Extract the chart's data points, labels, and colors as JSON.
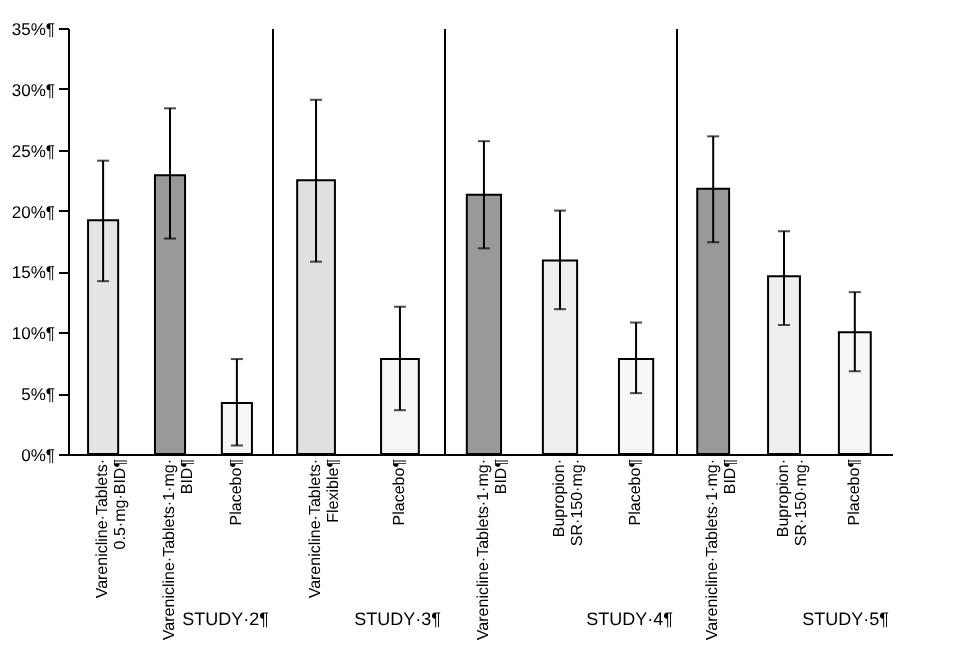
{
  "chart_data": [
    {
      "type": "bar",
      "xlabel": "STUDY·2¶",
      "categories": [
        "Varenicline·Tablets·\n0.5·mg·BID¶",
        "Varenicline·Tablets·1·mg·\nBID¶",
        "Placebo¶"
      ],
      "values": [
        19.2,
        22.9,
        4.2
      ],
      "errors": [
        [
          14.2,
          24.1
        ],
        [
          17.7,
          28.4
        ],
        [
          0.7,
          7.8
        ]
      ],
      "colors": [
        "#e4e4e4",
        "#999999",
        "#f6f6f6"
      ],
      "ylim": [
        0,
        35
      ],
      "yticks": [
        {
          "value": 0,
          "label": "0%¶"
        },
        {
          "value": 5,
          "label": "5%¶"
        },
        {
          "value": 10,
          "label": "10%¶"
        },
        {
          "value": 15,
          "label": "15%¶"
        },
        {
          "value": 20,
          "label": "20%¶"
        },
        {
          "value": 25,
          "label": "25%¶"
        },
        {
          "value": 30,
          "label": "30%¶"
        },
        {
          "value": 35,
          "label": "35%¶"
        }
      ]
    },
    {
      "type": "bar",
      "xlabel": "STUDY·3¶",
      "categories": [
        "Varenicline·Tablets·\nFlexible¶",
        "Placebo¶"
      ],
      "values": [
        22.5,
        7.8
      ],
      "errors": [
        [
          15.8,
          29.1
        ],
        [
          3.6,
          12.1
        ]
      ],
      "colors": [
        "#e0e0e0",
        "#f6f6f6"
      ],
      "ylim": [
        0,
        35
      ],
      "tick_labels": "x"
    },
    {
      "type": "bar",
      "xlabel": "STUDY·4¶",
      "categories": [
        "Varenicline·Tablets·1·mg·\nBID¶",
        "Bupropion·\nSR·150·mg·",
        "Placebo¶"
      ],
      "values": [
        21.3,
        15.9,
        7.8
      ],
      "errors": [
        [
          16.9,
          25.7
        ],
        [
          11.9,
          20.0
        ],
        [
          5.0,
          10.8
        ]
      ],
      "colors": [
        "#999999",
        "#eeeeee",
        "#f6f6f6"
      ],
      "ylim": [
        0,
        35
      ],
      "tick_labels": "x"
    },
    {
      "type": "bar",
      "xlabel": "STUDY·5¶",
      "categories": [
        "Varenicline·Tablets·1·mg·\nBID¶",
        "Bupropion·\nSR·150·mg·",
        "Placebo¶"
      ],
      "values": [
        21.8,
        14.6,
        10.0
      ],
      "errors": [
        [
          17.4,
          26.1
        ],
        [
          10.6,
          18.3
        ],
        [
          6.8,
          13.3
        ]
      ],
      "colors": [
        "#999999",
        "#eeeeee",
        "#f6f6f6"
      ],
      "ylim": [
        0,
        35
      ],
      "tick_labels": "x"
    }
  ]
}
